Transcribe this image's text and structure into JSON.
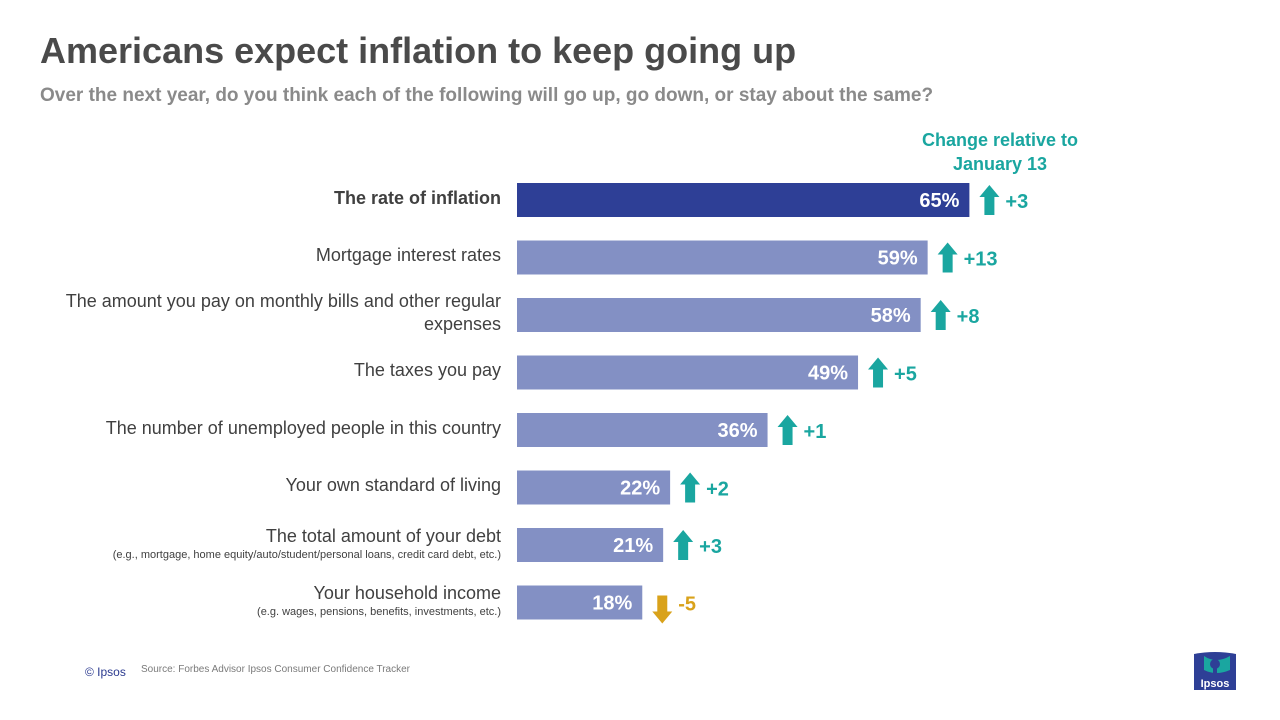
{
  "title": "Americans expect inflation to keep going up",
  "subtitle": "Over the next year, do you think each of the following will go up, go down, or stay about the same?",
  "change_header": "Change relative to January 13",
  "footer": {
    "copyright": "© Ipsos",
    "source": "Source: Forbes Advisor Ipsos Consumer Confidence Tracker"
  },
  "logo": {
    "text": "Ipsos",
    "icon": "ipsos-logo-icon"
  },
  "colors": {
    "highlight_bar": "#2e3f96",
    "bar": "#8390c4",
    "up": "#1aa6a0",
    "down": "#d9a21b",
    "text": "#404040"
  },
  "chart_data": {
    "type": "bar",
    "orientation": "horizontal",
    "xlim": [
      0,
      100
    ],
    "categories": [
      {
        "label": "The rate of inflation",
        "note": "",
        "value": 65,
        "value_label": "65%",
        "change": 3,
        "change_label": "+3",
        "direction": "up",
        "highlight": true
      },
      {
        "label": "Mortgage interest rates",
        "note": "",
        "value": 59,
        "value_label": "59%",
        "change": 13,
        "change_label": "+13",
        "direction": "up",
        "highlight": false
      },
      {
        "label": "The amount you pay on monthly bills and other regular expenses",
        "note": "",
        "value": 58,
        "value_label": "58%",
        "change": 8,
        "change_label": "+8",
        "direction": "up",
        "highlight": false
      },
      {
        "label": "The taxes you pay",
        "note": "",
        "value": 49,
        "value_label": "49%",
        "change": 5,
        "change_label": "+5",
        "direction": "up",
        "highlight": false
      },
      {
        "label": "The number of unemployed people in this country",
        "note": "",
        "value": 36,
        "value_label": "36%",
        "change": 1,
        "change_label": "+1",
        "direction": "up",
        "highlight": false
      },
      {
        "label": "Your own standard of living",
        "note": "",
        "value": 22,
        "value_label": "22%",
        "change": 2,
        "change_label": "+2",
        "direction": "up",
        "highlight": false
      },
      {
        "label": "The total amount of your debt",
        "note": "(e.g., mortgage, home equity/auto/student/personal loans, credit card debt, etc.)",
        "value": 21,
        "value_label": "21%",
        "change": 3,
        "change_label": "+3",
        "direction": "up",
        "highlight": false
      },
      {
        "label": "Your household income",
        "note": "(e.g. wages, pensions, benefits, investments, etc.)",
        "value": 18,
        "value_label": "18%",
        "change": -5,
        "change_label": "-5",
        "direction": "down",
        "highlight": false
      }
    ]
  }
}
